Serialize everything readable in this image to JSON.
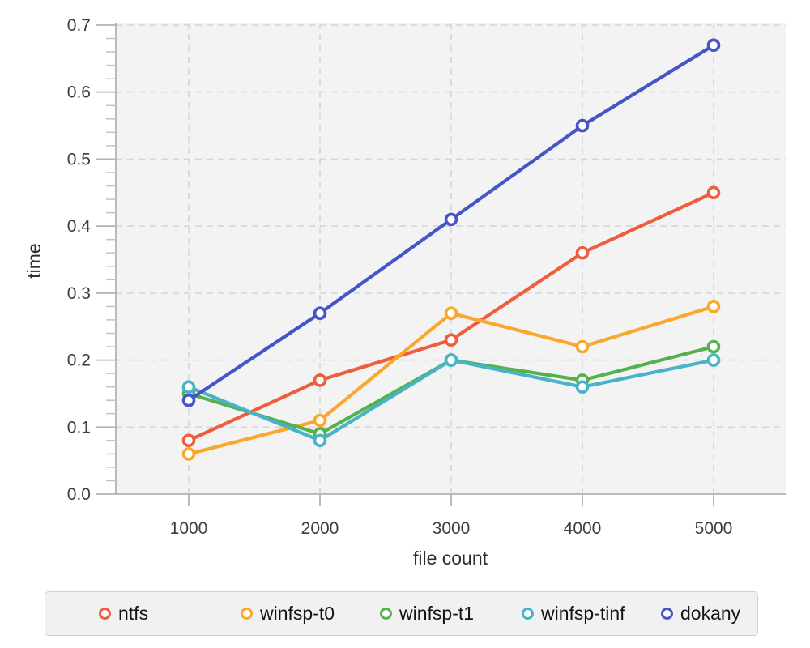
{
  "chart_data": {
    "type": "line",
    "x": [
      1000,
      2000,
      3000,
      4000,
      5000
    ],
    "xlabel": "file count",
    "ylabel": "time",
    "xticks": [
      1000,
      2000,
      3000,
      4000,
      5000
    ],
    "yticks": [
      0.0,
      0.1,
      0.2,
      0.3,
      0.4,
      0.5,
      0.6,
      0.7
    ],
    "y_minor_step": 0.02,
    "ylim": [
      0.0,
      0.7
    ],
    "grid": "dashed",
    "legend_position": "bottom",
    "marker": "open-circle",
    "series": [
      {
        "name": "ntfs",
        "color": "#EE5D3D",
        "values": [
          0.08,
          0.17,
          0.23,
          0.36,
          0.45
        ]
      },
      {
        "name": "winfsp-t0",
        "color": "#FAA72B",
        "values": [
          0.06,
          0.11,
          0.27,
          0.22,
          0.28
        ]
      },
      {
        "name": "winfsp-t1",
        "color": "#55B14C",
        "values": [
          0.15,
          0.09,
          0.2,
          0.17,
          0.22
        ]
      },
      {
        "name": "winfsp-tinf",
        "color": "#48B2C8",
        "values": [
          0.16,
          0.08,
          0.2,
          0.16,
          0.2
        ]
      },
      {
        "name": "dokany",
        "color": "#4655C6",
        "values": [
          0.14,
          0.27,
          0.41,
          0.55,
          0.67
        ]
      }
    ]
  },
  "style": {
    "plot_bg": "#f3f3f3",
    "grid_color": "#d6d6d6",
    "axis_color": "#b3b3b3",
    "minor_tick_color": "#c2c2c2",
    "marker_fill": "#ffffff",
    "legend_bg": "#f1f1f1",
    "legend_border": "#cfcfcf"
  }
}
